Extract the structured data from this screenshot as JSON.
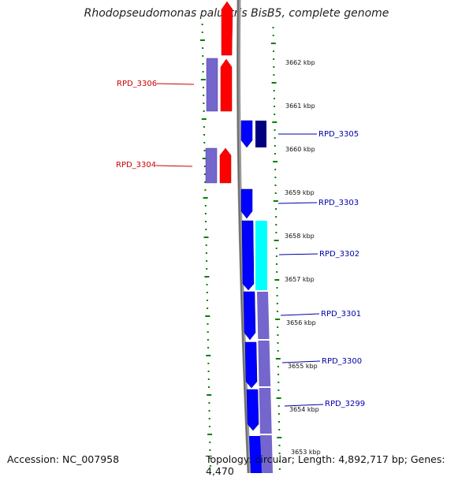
{
  "title": "Rhodopseudomonas palustris BisB5, complete genome",
  "footer": {
    "accession": "Accession: NC_007958",
    "topology": "Topology: circular; Length: 4,892,717 bp; Genes: 4,470"
  },
  "colors": {
    "reverse_gene": "#ff0000",
    "forward_gene": "#0000ff",
    "purple_feature": "#7466cc",
    "cyan_feature": "#00ffff",
    "navy_feature": "#000080",
    "dotted_track": "#008000",
    "backbone": "#888888",
    "label_reverse": "#cc0000",
    "label_forward": "#0000aa"
  },
  "ticks": [
    "3662 kbp",
    "3661 kbp",
    "3660 kbp",
    "3659 kbp",
    "3658 kbp",
    "3657 kbp",
    "3656 kbp",
    "3655 kbp",
    "3654 kbp",
    "3653 kbp"
  ],
  "gene_labels": [
    {
      "name": "RPD_3306",
      "strand": "reverse"
    },
    {
      "name": "RPD_3304",
      "strand": "reverse"
    },
    {
      "name": "RPD_3305",
      "strand": "forward"
    },
    {
      "name": "RPD_3303",
      "strand": "forward"
    },
    {
      "name": "RPD_3302",
      "strand": "forward"
    },
    {
      "name": "RPD_3301",
      "strand": "forward"
    },
    {
      "name": "RPD_3300",
      "strand": "forward"
    },
    {
      "name": "RPD_3299",
      "strand": "forward"
    }
  ]
}
